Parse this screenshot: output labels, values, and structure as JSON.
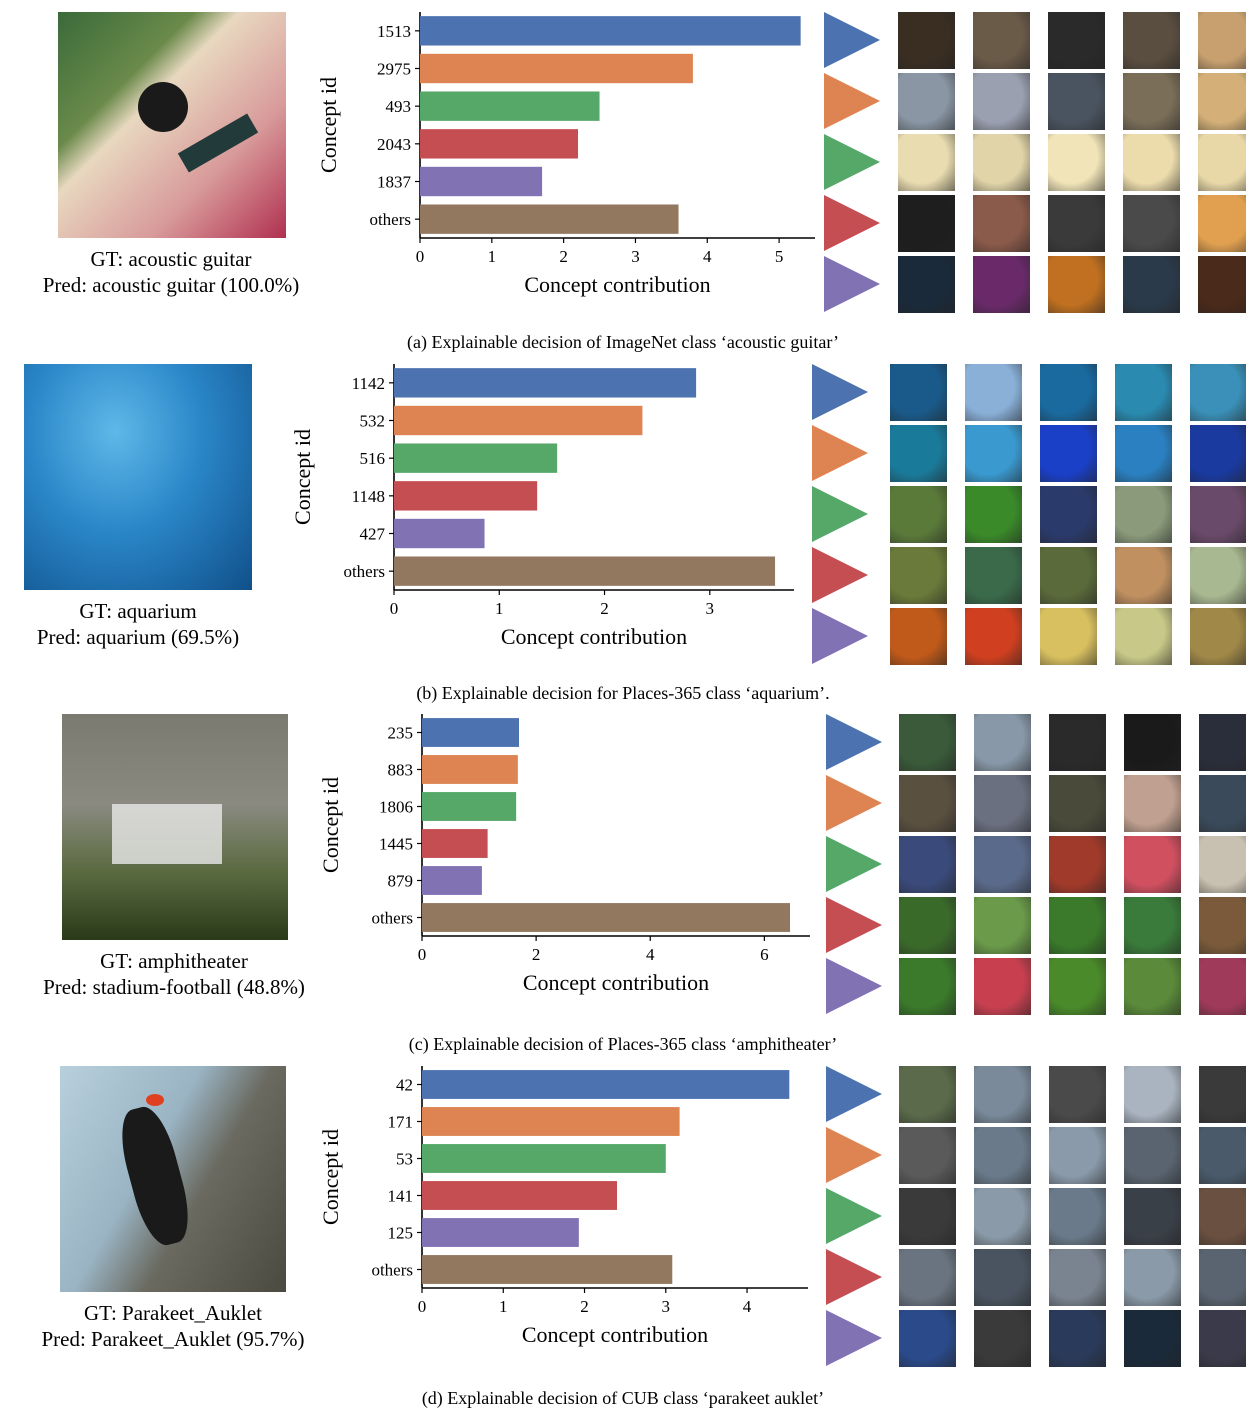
{
  "colors": {
    "c1": "#4c72b0",
    "c2": "#dd8452",
    "c3": "#55a868",
    "c4": "#c44e52",
    "c5": "#8172b3",
    "c6": "#937860"
  },
  "panels": [
    {
      "gt": "GT: acoustic guitar",
      "pred": "Pred: acoustic guitar (100.0%)",
      "caption": "(a) Explainable decision of ImageNet class ‘acoustic guitar’",
      "chart_data": {
        "type": "bar",
        "orientation": "horizontal",
        "categories": [
          "1513",
          "2975",
          "493",
          "2043",
          "1837",
          "others"
        ],
        "values": [
          5.3,
          3.8,
          2.5,
          2.2,
          1.7,
          3.6
        ],
        "xlabel": "Concept contribution",
        "ylabel": "Concept id",
        "xlim": [
          0,
          5.5
        ],
        "xticks": [
          "0",
          "1",
          "2",
          "3",
          "4",
          "5"
        ],
        "grid": false
      }
    },
    {
      "gt": "GT: aquarium",
      "pred": "Pred: aquarium (69.5%)",
      "caption": "(b) Explainable decision for Places-365 class ‘aquarium’.",
      "chart_data": {
        "type": "bar",
        "orientation": "horizontal",
        "categories": [
          "1142",
          "532",
          "516",
          "1148",
          "427",
          "others"
        ],
        "values": [
          2.87,
          2.36,
          1.55,
          1.36,
          0.86,
          3.62
        ],
        "xlabel": "Concept contribution",
        "ylabel": "Concept id",
        "xlim": [
          0,
          3.8
        ],
        "xticks": [
          "0",
          "1",
          "2",
          "3"
        ],
        "grid": false
      }
    },
    {
      "gt": "GT: amphitheater",
      "pred": "Pred: stadium-football (48.8%)",
      "caption": "(c) Explainable decision of Places-365 class ‘amphitheater’",
      "chart_data": {
        "type": "bar",
        "orientation": "horizontal",
        "categories": [
          "235",
          "883",
          "1806",
          "1445",
          "879",
          "others"
        ],
        "values": [
          1.7,
          1.68,
          1.65,
          1.15,
          1.05,
          6.45
        ],
        "xlabel": "Concept contribution",
        "ylabel": "Concept id",
        "xlim": [
          0,
          6.8
        ],
        "xticks": [
          "0",
          "2",
          "4",
          "6"
        ],
        "grid": false
      }
    },
    {
      "gt": "GT: Parakeet_Auklet",
      "pred": "Pred: Parakeet_Auklet (95.7%)",
      "caption": "(d) Explainable decision of CUB class ‘parakeet auklet’",
      "chart_data": {
        "type": "bar",
        "orientation": "horizontal",
        "categories": [
          "42",
          "171",
          "53",
          "141",
          "125",
          "others"
        ],
        "values": [
          4.52,
          3.17,
          3.0,
          2.4,
          1.93,
          3.08
        ],
        "xlabel": "Concept contribution",
        "ylabel": "Concept id",
        "xlim": [
          0,
          4.75
        ],
        "xticks": [
          "0",
          "1",
          "2",
          "3",
          "4"
        ],
        "grid": false
      }
    }
  ]
}
